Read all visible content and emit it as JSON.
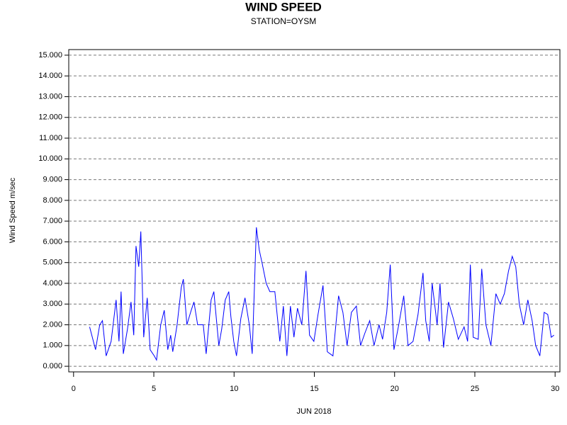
{
  "chart_data": {
    "type": "line",
    "title": "WIND SPEED",
    "subtitle": "STATION=OYSM",
    "x_label": "JUN 2018",
    "y_label": "Wind Speed m/sec",
    "xlim": [
      -0.3,
      30.3
    ],
    "xticks": [
      0,
      5,
      10,
      15,
      20,
      25,
      30
    ],
    "ylim": [
      -0.27,
      15.27
    ],
    "yticks": [
      {
        "value": 0,
        "label": "0.000"
      },
      {
        "value": 1,
        "label": "1.000"
      },
      {
        "value": 2,
        "label": "2.000"
      },
      {
        "value": 3,
        "label": "3.000"
      },
      {
        "value": 4,
        "label": "4.000"
      },
      {
        "value": 5,
        "label": "5.000"
      },
      {
        "value": 6,
        "label": "6.000"
      },
      {
        "value": 7,
        "label": "7.000"
      },
      {
        "value": 8,
        "label": "8.000"
      },
      {
        "value": 9,
        "label": "9.000"
      },
      {
        "value": 10,
        "label": "10.000"
      },
      {
        "value": 11,
        "label": "11.000"
      },
      {
        "value": 12,
        "label": "12.000"
      },
      {
        "value": 13,
        "label": "13.000"
      },
      {
        "value": 14,
        "label": "14.000"
      },
      {
        "value": 15,
        "label": "15.000"
      }
    ],
    "grid": true,
    "series": [
      {
        "color": "#0000ff",
        "x": [
          1.0,
          1.37,
          1.63,
          1.8,
          2.03,
          2.34,
          2.65,
          2.83,
          2.96,
          3.1,
          3.36,
          3.58,
          3.75,
          3.89,
          4.06,
          4.19,
          4.37,
          4.59,
          4.77,
          5.03,
          5.17,
          5.43,
          5.65,
          5.87,
          6.05,
          6.18,
          6.45,
          6.71,
          6.84,
          7.06,
          7.33,
          7.5,
          7.73,
          8.08,
          8.26,
          8.57,
          8.74,
          9.05,
          9.23,
          9.45,
          9.67,
          9.8,
          9.98,
          10.15,
          10.42,
          10.68,
          10.95,
          11.13,
          11.39,
          11.57,
          11.74,
          12.0,
          12.23,
          12.54,
          12.85,
          13.07,
          13.29,
          13.51,
          13.73,
          13.95,
          14.22,
          14.48,
          14.7,
          14.97,
          15.23,
          15.54,
          15.81,
          16.16,
          16.51,
          16.78,
          17.04,
          17.31,
          17.62,
          17.88,
          18.15,
          18.45,
          18.72,
          19.03,
          19.25,
          19.51,
          19.73,
          19.96,
          20.26,
          20.57,
          20.84,
          21.15,
          21.46,
          21.77,
          21.94,
          22.16,
          22.34,
          22.65,
          22.83,
          23.05,
          23.36,
          23.66,
          23.97,
          24.33,
          24.55,
          24.72,
          24.9,
          25.21,
          25.43,
          25.69,
          26.0,
          26.31,
          26.58,
          26.84,
          27.1,
          27.33,
          27.55,
          27.77,
          28.04,
          28.3,
          28.57,
          28.79,
          29.05,
          29.32,
          29.54,
          29.76,
          29.93
        ],
        "values": [
          1.9,
          0.8,
          2.0,
          2.2,
          0.5,
          1.2,
          3.2,
          1.2,
          3.6,
          0.6,
          1.8,
          3.1,
          1.5,
          5.8,
          4.8,
          6.5,
          1.4,
          3.3,
          0.8,
          0.5,
          0.3,
          2.0,
          2.7,
          0.8,
          1.5,
          0.7,
          2.0,
          3.8,
          4.2,
          2.0,
          2.7,
          3.1,
          2.0,
          2.0,
          0.6,
          3.2,
          3.6,
          1.0,
          1.8,
          3.2,
          3.6,
          2.4,
          1.2,
          0.5,
          2.3,
          3.3,
          2.0,
          0.6,
          6.7,
          5.6,
          5.0,
          4.0,
          3.6,
          3.6,
          1.2,
          2.9,
          0.5,
          2.9,
          1.4,
          2.8,
          2.0,
          4.6,
          1.5,
          1.2,
          2.5,
          3.9,
          0.7,
          0.5,
          3.4,
          2.6,
          1.0,
          2.6,
          2.9,
          1.0,
          1.6,
          2.2,
          1.0,
          2.0,
          1.3,
          2.6,
          4.9,
          0.8,
          2.0,
          3.4,
          1.0,
          1.2,
          2.5,
          4.5,
          2.2,
          1.2,
          4.0,
          2.0,
          4.0,
          0.9,
          3.1,
          2.3,
          1.3,
          1.9,
          1.2,
          4.9,
          1.4,
          1.3,
          4.7,
          2.0,
          1.0,
          3.5,
          3.0,
          3.5,
          4.6,
          5.3,
          4.8,
          3.0,
          2.0,
          3.2,
          2.2,
          1.0,
          0.5,
          2.6,
          2.5,
          1.4,
          1.5
        ]
      }
    ]
  }
}
